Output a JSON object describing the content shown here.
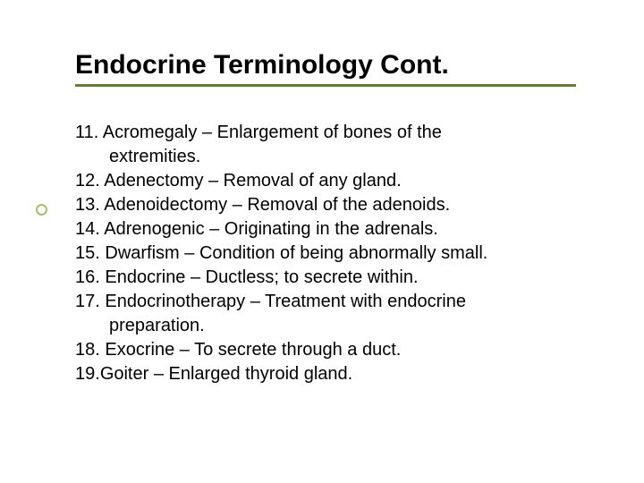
{
  "title": "Endocrine Terminology Cont.",
  "colors": {
    "underline": "#667b3a",
    "bullet_border": "#a8bd6a",
    "text": "#000000",
    "background": "#ffffff"
  },
  "typography": {
    "title_fontsize": 30,
    "body_fontsize": 20,
    "title_weight": "bold"
  },
  "items": [
    {
      "num": "11.",
      "line1": "Acromegaly – Enlargement of bones of the",
      "wrap": "extremities."
    },
    {
      "num": "12.",
      "line1": "Adenectomy – Removal of any gland."
    },
    {
      "num": "13.",
      "line1": "Adenoidectomy – Removal of the adenoids."
    },
    {
      "num": "14.",
      "line1": "Adrenogenic – Originating in the adrenals."
    },
    {
      "num": "15.",
      "line1": "Dwarfism – Condition of being abnormally small."
    },
    {
      "num": "16.",
      "line1": "Endocrine – Ductless; to secrete within."
    },
    {
      "num": "17.",
      "line1": "Endocrinotherapy – Treatment with endocrine",
      "wrap": "preparation."
    },
    {
      "num": "18.",
      "line1": "Exocrine – To secrete through a duct."
    },
    {
      "num": "19.",
      "line1": "Goiter – Enlarged thyroid gland.",
      "tight": true
    }
  ]
}
